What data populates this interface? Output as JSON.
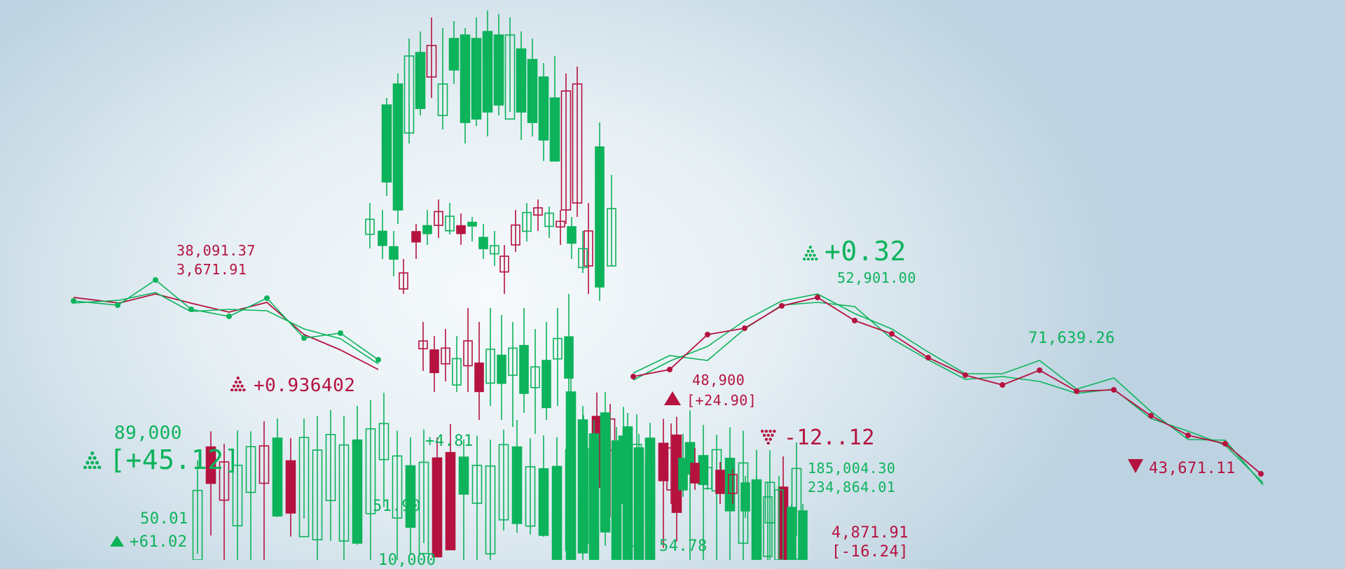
{
  "colors": {
    "green": "#0db35b",
    "red": "#b5123f",
    "background": "#dbe7ee"
  },
  "labels": {
    "left_value_1": "38,091.37",
    "left_value_2": "3,671.91",
    "left_change": "+0.936402",
    "lower_left_value": "89,000",
    "lower_left_change": "[+45.12]",
    "small_value_1": "50.01",
    "small_change_1": "+61.02",
    "center_value_1": "+4.81",
    "center_value_2": "51.90",
    "center_value_3": "10,000",
    "center_value_4": "54.78",
    "mid_value": "48,900",
    "mid_change": "[+24.90]",
    "top_right_change": "+0.32",
    "top_right_value": "52,901.00",
    "neg_change": "-12..12",
    "right_value_1": "185,004.30",
    "right_value_2": "234,864.01",
    "right_value_3": "4,871.91",
    "right_change_3": "[-16.24]",
    "far_right_value": "71,639.26",
    "far_right_down": "43,671.11"
  },
  "icons": {
    "pyramid_up": "dotted-pyramid-up-icon",
    "pyramid_down": "dotted-pyramid-down-icon",
    "triangle_up": "solid-triangle-up-icon",
    "triangle_down": "solid-triangle-down-icon"
  }
}
